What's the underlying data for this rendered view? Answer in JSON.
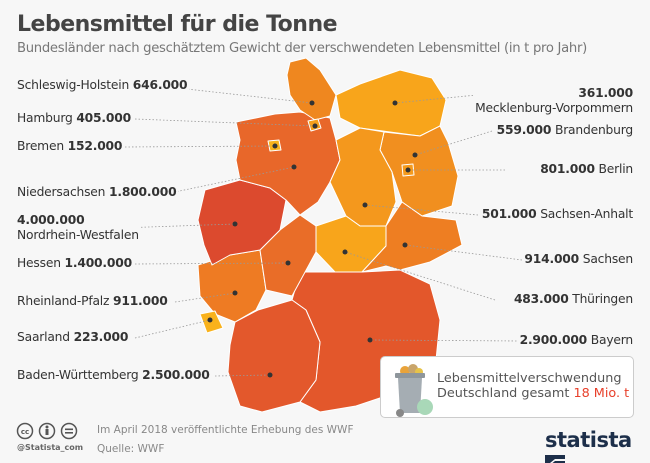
{
  "header": {
    "title": "Lebensmittel für die Tonne",
    "subtitle": "Bundesländer nach geschätztem Gewicht der verschwendeten Lebensmittel (in t pro Jahr)"
  },
  "regions": {
    "sh": {
      "name": "Schleswig-Holstein",
      "value": "646.000",
      "color": "#ef871f"
    },
    "hh": {
      "name": "Hamburg",
      "value": "405.000",
      "color": "#f5a01c"
    },
    "hb": {
      "name": "Bremen",
      "value": "152.000",
      "color": "#f9b31c"
    },
    "ni": {
      "name": "Niedersachsen",
      "value": "1.800.000",
      "color": "#e8672a"
    },
    "nw": {
      "name": "Nordrhein-Westfalen",
      "value": "4.000.000",
      "color": "#dc4a2e"
    },
    "he": {
      "name": "Hessen",
      "value": "1.400.000",
      "color": "#e96d28"
    },
    "rp": {
      "name": "Rheinland-Pfalz",
      "value": "911.000",
      "color": "#ee7b23"
    },
    "sl": {
      "name": "Saarland",
      "value": "223.000",
      "color": "#f9b21c"
    },
    "bw": {
      "name": "Baden-Württemberg",
      "value": "2.500.000",
      "color": "#e3582c"
    },
    "mv": {
      "name": "Mecklenburg-Vorpommern",
      "value": "361.000",
      "color": "#f8a51b"
    },
    "bb": {
      "name": "Brandenburg",
      "value": "559.000",
      "color": "#f18f1f"
    },
    "be": {
      "name": "Berlin",
      "value": "801.000",
      "color": "#f59a1d"
    },
    "st": {
      "name": "Sachsen-Anhalt",
      "value": "501.000",
      "color": "#f4981d"
    },
    "sn": {
      "name": "Sachsen",
      "value": "914.000",
      "color": "#ee7e22"
    },
    "th": {
      "name": "Thüringen",
      "value": "483.000",
      "color": "#f8a51b"
    },
    "by": {
      "name": "Bayern",
      "value": "2.900.000",
      "color": "#e3572b"
    }
  },
  "total": {
    "line1": "Lebensmittelverschwendung",
    "line2_prefix": "Deutschland gesamt",
    "value": "18 Mio. t",
    "accent": "#e8402b"
  },
  "footer": {
    "note": "Im April 2018 veröffentlichte Erhebung des WWF",
    "source": "Quelle: WWF",
    "handle": "@Statista_com",
    "logo": "statista"
  }
}
